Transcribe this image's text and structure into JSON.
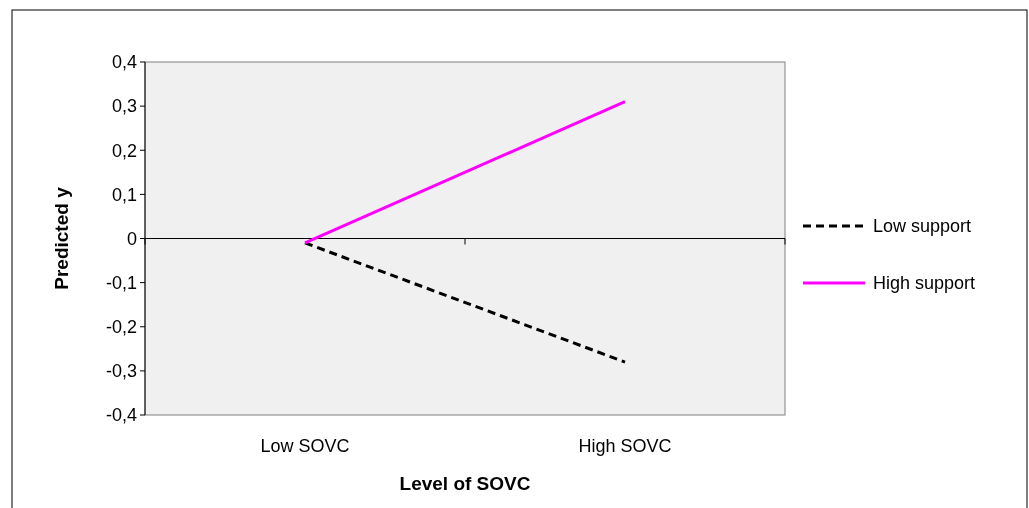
{
  "chart_data": {
    "type": "line",
    "xlabel": "Level of SOVC",
    "ylabel": "Predicted y",
    "categories": [
      "Low SOVC",
      "High SOVC"
    ],
    "ylim": [
      -0.4,
      0.4
    ],
    "yticks": [
      {
        "value": -0.4,
        "label": "-0,4"
      },
      {
        "value": -0.3,
        "label": "-0,3"
      },
      {
        "value": -0.2,
        "label": "-0,2"
      },
      {
        "value": -0.1,
        "label": "-0,1"
      },
      {
        "value": 0,
        "label": "0"
      },
      {
        "value": 0.1,
        "label": "0,1"
      },
      {
        "value": 0.2,
        "label": "0,2"
      },
      {
        "value": 0.3,
        "label": "0,3"
      },
      {
        "value": 0.4,
        "label": "0,4"
      }
    ],
    "series": [
      {
        "name": "Low support",
        "color": "#000000",
        "line_style": "dashed",
        "values": [
          -0.01,
          -0.28
        ]
      },
      {
        "name": "High support",
        "color": "#ff00ff",
        "line_style": "solid",
        "values": [
          -0.01,
          0.31
        ]
      }
    ],
    "legend": "right"
  }
}
